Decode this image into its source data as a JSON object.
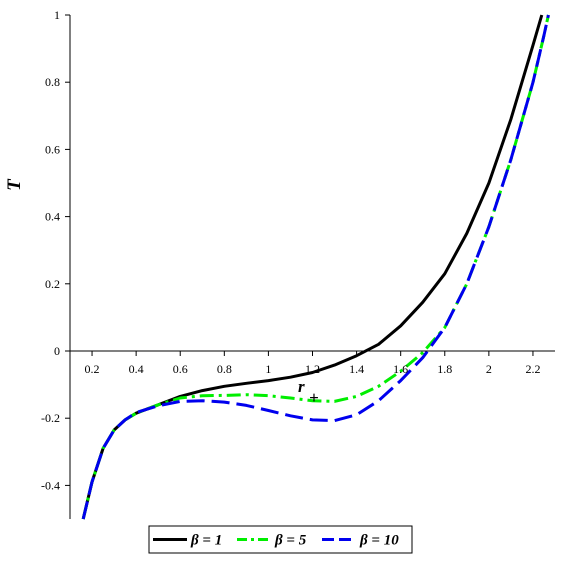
{
  "chart_data": {
    "type": "line",
    "xlabel": "r",
    "xlabel_sub": "+",
    "ylabel": "T",
    "xlim": [
      0.1,
      2.3
    ],
    "ylim": [
      -0.5,
      1.0
    ],
    "x_ticks": [
      0.2,
      0.4,
      0.6,
      0.8,
      1,
      1.2,
      1.4,
      1.6,
      1.8,
      2,
      2.2
    ],
    "x_tick_labels": [
      "0.2",
      "0.4",
      "0.6",
      "0.8",
      "1",
      "1.2",
      "1.4",
      "1.6",
      "1.8",
      "2",
      "2.2"
    ],
    "y_ticks": [
      -0.4,
      -0.2,
      0,
      0.2,
      0.4,
      0.6,
      0.8,
      1
    ],
    "y_tick_labels": [
      "-0.4",
      "-0.2",
      "0",
      "0.2",
      "0.4",
      "0.6",
      "0.8",
      "1"
    ],
    "grid": false,
    "legend_position": "bottom",
    "series": [
      {
        "name": "β = 1",
        "color": "#000000",
        "dash": "solid",
        "points": [
          [
            0.16,
            -0.5
          ],
          [
            0.2,
            -0.39
          ],
          [
            0.25,
            -0.29
          ],
          [
            0.3,
            -0.235
          ],
          [
            0.35,
            -0.205
          ],
          [
            0.4,
            -0.185
          ],
          [
            0.5,
            -0.16
          ],
          [
            0.6,
            -0.135
          ],
          [
            0.7,
            -0.118
          ],
          [
            0.8,
            -0.105
          ],
          [
            0.9,
            -0.096
          ],
          [
            1.0,
            -0.088
          ],
          [
            1.1,
            -0.078
          ],
          [
            1.2,
            -0.064
          ],
          [
            1.3,
            -0.042
          ],
          [
            1.4,
            -0.014
          ],
          [
            1.5,
            0.02
          ],
          [
            1.6,
            0.075
          ],
          [
            1.7,
            0.145
          ],
          [
            1.8,
            0.23
          ],
          [
            1.9,
            0.35
          ],
          [
            2.0,
            0.5
          ],
          [
            2.1,
            0.69
          ],
          [
            2.2,
            0.91
          ],
          [
            2.24,
            1.0
          ]
        ]
      },
      {
        "name": "β = 5",
        "color": "#00ee00",
        "dash": "dash-dot",
        "points": [
          [
            0.16,
            -0.5
          ],
          [
            0.2,
            -0.39
          ],
          [
            0.25,
            -0.29
          ],
          [
            0.3,
            -0.235
          ],
          [
            0.35,
            -0.205
          ],
          [
            0.4,
            -0.185
          ],
          [
            0.5,
            -0.16
          ],
          [
            0.6,
            -0.14
          ],
          [
            0.7,
            -0.133
          ],
          [
            0.8,
            -0.132
          ],
          [
            0.9,
            -0.13
          ],
          [
            1.0,
            -0.133
          ],
          [
            1.1,
            -0.14
          ],
          [
            1.2,
            -0.148
          ],
          [
            1.3,
            -0.15
          ],
          [
            1.4,
            -0.135
          ],
          [
            1.5,
            -0.105
          ],
          [
            1.6,
            -0.06
          ],
          [
            1.7,
            -0.005
          ],
          [
            1.8,
            0.07
          ],
          [
            1.9,
            0.2
          ],
          [
            2.0,
            0.37
          ],
          [
            2.1,
            0.57
          ],
          [
            2.2,
            0.8
          ],
          [
            2.25,
            0.94
          ],
          [
            2.27,
            1.0
          ]
        ]
      },
      {
        "name": "β = 10",
        "color": "#0000ee",
        "dash": "dashed",
        "points": [
          [
            0.16,
            -0.5
          ],
          [
            0.2,
            -0.39
          ],
          [
            0.25,
            -0.29
          ],
          [
            0.3,
            -0.235
          ],
          [
            0.35,
            -0.205
          ],
          [
            0.4,
            -0.183
          ],
          [
            0.5,
            -0.163
          ],
          [
            0.6,
            -0.15
          ],
          [
            0.7,
            -0.148
          ],
          [
            0.8,
            -0.152
          ],
          [
            0.9,
            -0.162
          ],
          [
            1.0,
            -0.177
          ],
          [
            1.1,
            -0.193
          ],
          [
            1.2,
            -0.205
          ],
          [
            1.3,
            -0.207
          ],
          [
            1.4,
            -0.19
          ],
          [
            1.5,
            -0.148
          ],
          [
            1.6,
            -0.088
          ],
          [
            1.7,
            -0.02
          ],
          [
            1.8,
            0.07
          ],
          [
            1.9,
            0.2
          ],
          [
            2.0,
            0.37
          ],
          [
            2.1,
            0.57
          ],
          [
            2.2,
            0.8
          ],
          [
            2.25,
            0.94
          ],
          [
            2.27,
            1.0
          ]
        ]
      }
    ]
  }
}
